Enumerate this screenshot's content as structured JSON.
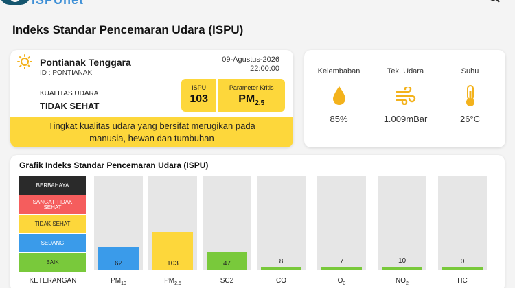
{
  "header": {
    "logo_text": "ISPUnet",
    "search_icon": "search-icon"
  },
  "page_title": "Indeks Standar Pencemaran Udara (ISPU)",
  "station": {
    "icon": "sun-icon",
    "name": "Pontianak Tenggara",
    "id_text": "ID : PONTIANAK",
    "date": "09-Agustus-2026",
    "time": "22:00:00",
    "quality_label": "KUALITAS UDARA",
    "quality_value": "TIDAK SEHAT",
    "ispu_label": "ISPU",
    "ispu_value": "103",
    "critical_label": "Parameter Kritis",
    "critical_value_main": "PM",
    "critical_value_sub": "2.5",
    "description_line1": "Tingkat kualitas udara yang bersifat merugikan pada",
    "description_line2": "manusia, hewan dan tumbuhan",
    "accent_color": "#fdd73b"
  },
  "weather": [
    {
      "label": "Kelembaban",
      "icon": "droplet-icon",
      "value": "85%",
      "color": "#f3b21c"
    },
    {
      "label": "Tek. Udara",
      "icon": "wind-icon",
      "value": "1.009mBar",
      "color": "#f3b21c"
    },
    {
      "label": "Suhu",
      "icon": "thermometer-icon",
      "value": "26°C",
      "color": "#f3b21c"
    }
  ],
  "chart_data": {
    "type": "bar",
    "title": "Grafik Indeks Standar Pencemaran Udara (ISPU)",
    "legend_title": "KETERANGAN",
    "legend": [
      {
        "label": "BERBAHAYA",
        "color": "#2a2a2a"
      },
      {
        "label": "SANGAT TIDAK SEHAT",
        "color": "#f55d5d"
      },
      {
        "label": "TIDAK SEHAT",
        "color": "#fdd73b"
      },
      {
        "label": "SEDANG",
        "color": "#3a9bea"
      },
      {
        "label": "BAIK",
        "color": "#79c93b"
      }
    ],
    "categories": [
      {
        "main": "PM",
        "sub": "10"
      },
      {
        "main": "PM",
        "sub": "2.5"
      },
      {
        "main": "SC2",
        "sub": ""
      },
      {
        "main": "CO",
        "sub": ""
      },
      {
        "main": "O",
        "sub": "3"
      },
      {
        "main": "NO",
        "sub": "2"
      },
      {
        "main": "HC",
        "sub": ""
      }
    ],
    "values": [
      62,
      103,
      47,
      8,
      7,
      10,
      0
    ],
    "value_labels": [
      "62",
      "103",
      "47",
      "8",
      "7",
      "10",
      "0"
    ],
    "bar_colors": [
      "#3a9bea",
      "#fdd73b",
      "#79c93b",
      "#79c93b",
      "#79c93b",
      "#79c93b",
      "#79c93b"
    ],
    "ylim": [
      0,
      250
    ]
  }
}
